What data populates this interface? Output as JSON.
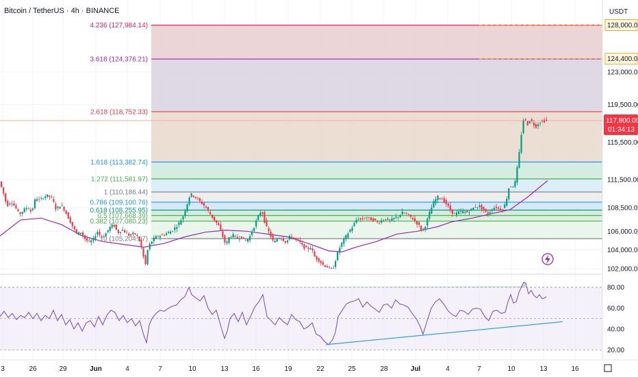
{
  "header": {
    "title": "Bitcoin / TetherUS · 4h · BINANCE"
  },
  "price_scale": {
    "currency": "USDT",
    "ticks": [
      "123,000.00",
      "119,500.00",
      "115,500.00",
      "111,500.00",
      "108,500.00",
      "106,000.00",
      "104,000.00",
      "102,000.00"
    ],
    "current_price": "117,800.00",
    "countdown": "01:34:13",
    "alert_labels": [
      "128,000.00",
      "124,400.00"
    ]
  },
  "rsi_scale": {
    "ticks": [
      "80.00",
      "60.00",
      "40.00",
      "20.00"
    ]
  },
  "time_axis": {
    "labels": [
      "3",
      "26",
      "29",
      "Jun",
      "4",
      "7",
      "10",
      "13",
      "16",
      "19",
      "22",
      "25",
      "28",
      "Jul",
      "4",
      "7",
      "10",
      "13",
      "16"
    ]
  },
  "colors": {
    "up": "#089981",
    "down": "#f23645",
    "ma": "#9c27b0",
    "rsi": "#7e57c2",
    "rsi_band": "#ede7f6",
    "trendline": "#2196f3",
    "alert": "#f9a825"
  },
  "chart_data": [
    {
      "type": "candlestick",
      "symbol": "BTCUSDT",
      "interval": "4h",
      "ylim": [
        102000,
        129500
      ],
      "current_price": 117800,
      "fib_levels": [
        {
          "ratio": "0",
          "price": 105204.17,
          "label": "0 (105,204.17)",
          "color": "#787b86"
        },
        {
          "ratio": "0.382",
          "price": 107080.23,
          "label": "0.382 (107,080.23)",
          "color": "#4caf50"
        },
        {
          "ratio": "0.5",
          "price": 107668.39,
          "label": "0.5 (107,668.39)",
          "color": "#4caf50"
        },
        {
          "ratio": "0.618",
          "price": 108255.95,
          "label": "0.618 (108,255.95)",
          "color": "#089981"
        },
        {
          "ratio": "0.786",
          "price": 109100.76,
          "label": "0.786 (109,100.76)",
          "color": "#2196f3"
        },
        {
          "ratio": "1",
          "price": 110186.44,
          "label": "1 (110,186.44)",
          "color": "#787b86"
        },
        {
          "ratio": "1.272",
          "price": 111581.97,
          "label": "1.272 (111,581.97)",
          "color": "#4caf50"
        },
        {
          "ratio": "1.618",
          "price": 113382.74,
          "label": "1.618 (113,382.74)",
          "color": "#2196f3"
        },
        {
          "ratio": "2.618",
          "price": 118752.33,
          "label": "2.618 (118,752.33)",
          "color": "#f23645"
        },
        {
          "ratio": "3.618",
          "price": 124376.21,
          "label": "3.618 (124,376.21)",
          "color": "#9c27b0"
        },
        {
          "ratio": "4.236",
          "price": 127984.14,
          "label": "4.236 (127,984.14)",
          "color": "#e91e63"
        }
      ],
      "price_path": [
        [
          0,
          111500
        ],
        [
          6,
          110300
        ],
        [
          12,
          108700
        ],
        [
          18,
          109200
        ],
        [
          24,
          108600
        ],
        [
          30,
          107800
        ],
        [
          36,
          108200
        ],
        [
          42,
          108600
        ],
        [
          48,
          108000
        ],
        [
          54,
          109600
        ],
        [
          60,
          109300
        ],
        [
          66,
          109700
        ],
        [
          72,
          109800
        ],
        [
          78,
          109500
        ],
        [
          84,
          108300
        ],
        [
          90,
          108800
        ],
        [
          96,
          108300
        ],
        [
          102,
          107400
        ],
        [
          108,
          106500
        ],
        [
          114,
          105700
        ],
        [
          120,
          105900
        ],
        [
          126,
          105200
        ],
        [
          132,
          104800
        ],
        [
          138,
          105100
        ],
        [
          144,
          106000
        ],
        [
          150,
          105300
        ],
        [
          156,
          105700
        ],
        [
          162,
          106400
        ],
        [
          168,
          106700
        ],
        [
          174,
          105800
        ],
        [
          180,
          106200
        ],
        [
          186,
          105800
        ],
        [
          192,
          105500
        ],
        [
          198,
          105800
        ],
        [
          204,
          105300
        ],
        [
          210,
          103900
        ],
        [
          214,
          102200
        ],
        [
          218,
          104200
        ],
        [
          222,
          104800
        ],
        [
          228,
          105300
        ],
        [
          234,
          105500
        ],
        [
          240,
          105600
        ],
        [
          246,
          105800
        ],
        [
          252,
          106000
        ],
        [
          258,
          106400
        ],
        [
          264,
          106900
        ],
        [
          270,
          107700
        ],
        [
          276,
          109100
        ],
        [
          280,
          110000
        ],
        [
          286,
          109700
        ],
        [
          292,
          109300
        ],
        [
          298,
          108900
        ],
        [
          304,
          108400
        ],
        [
          310,
          107700
        ],
        [
          316,
          107100
        ],
        [
          322,
          106500
        ],
        [
          328,
          105300
        ],
        [
          332,
          104500
        ],
        [
          336,
          105300
        ],
        [
          342,
          105600
        ],
        [
          348,
          105200
        ],
        [
          354,
          105500
        ],
        [
          360,
          104900
        ],
        [
          366,
          105300
        ],
        [
          372,
          106300
        ],
        [
          378,
          107400
        ],
        [
          384,
          108300
        ],
        [
          390,
          106600
        ],
        [
          396,
          105700
        ],
        [
          402,
          104700
        ],
        [
          408,
          105400
        ],
        [
          414,
          105200
        ],
        [
          420,
          104800
        ],
        [
          426,
          105500
        ],
        [
          432,
          105200
        ],
        [
          438,
          105000
        ],
        [
          444,
          104400
        ],
        [
          450,
          104100
        ],
        [
          456,
          104300
        ],
        [
          462,
          103200
        ],
        [
          468,
          102900
        ],
        [
          474,
          102400
        ],
        [
          480,
          102200
        ],
        [
          486,
          101900
        ],
        [
          490,
          102300
        ],
        [
          494,
          103500
        ],
        [
          500,
          104600
        ],
        [
          506,
          105300
        ],
        [
          512,
          106000
        ],
        [
          518,
          106600
        ],
        [
          524,
          107400
        ],
        [
          530,
          107200
        ],
        [
          536,
          107500
        ],
        [
          542,
          107300
        ],
        [
          548,
          107200
        ],
        [
          554,
          106900
        ],
        [
          560,
          107200
        ],
        [
          566,
          107300
        ],
        [
          572,
          107100
        ],
        [
          578,
          107400
        ],
        [
          584,
          107600
        ],
        [
          590,
          108000
        ],
        [
          596,
          107800
        ],
        [
          602,
          107500
        ],
        [
          608,
          107100
        ],
        [
          614,
          106600
        ],
        [
          618,
          106000
        ],
        [
          624,
          106700
        ],
        [
          630,
          108100
        ],
        [
          636,
          109200
        ],
        [
          642,
          109700
        ],
        [
          648,
          109400
        ],
        [
          654,
          108900
        ],
        [
          660,
          108200
        ],
        [
          666,
          107800
        ],
        [
          672,
          108000
        ],
        [
          678,
          108100
        ],
        [
          684,
          108000
        ],
        [
          690,
          108300
        ],
        [
          696,
          108600
        ],
        [
          702,
          108700
        ],
        [
          708,
          108300
        ],
        [
          714,
          107800
        ],
        [
          720,
          108300
        ],
        [
          726,
          108600
        ],
        [
          732,
          108300
        ],
        [
          738,
          108500
        ],
        [
          742,
          109500
        ],
        [
          746,
          110900
        ],
        [
          750,
          110700
        ],
        [
          754,
          111100
        ],
        [
          758,
          113000
        ],
        [
          762,
          115200
        ],
        [
          765,
          117500
        ],
        [
          768,
          118200
        ],
        [
          772,
          117300
        ],
        [
          776,
          117900
        ],
        [
          780,
          117600
        ],
        [
          784,
          117100
        ],
        [
          788,
          117500
        ],
        [
          792,
          117700
        ],
        [
          796,
          117800
        ],
        [
          800,
          117800
        ]
      ],
      "ma_path": [
        [
          0,
          105500
        ],
        [
          30,
          107200
        ],
        [
          60,
          107400
        ],
        [
          90,
          106700
        ],
        [
          120,
          105500
        ],
        [
          150,
          104900
        ],
        [
          180,
          104600
        ],
        [
          210,
          104300
        ],
        [
          240,
          104700
        ],
        [
          270,
          105400
        ],
        [
          300,
          105900
        ],
        [
          330,
          106100
        ],
        [
          360,
          106000
        ],
        [
          390,
          105700
        ],
        [
          420,
          105400
        ],
        [
          450,
          104700
        ],
        [
          480,
          103900
        ],
        [
          500,
          103800
        ],
        [
          520,
          104300
        ],
        [
          550,
          104900
        ],
        [
          580,
          105700
        ],
        [
          610,
          106000
        ],
        [
          640,
          106500
        ],
        [
          660,
          107000
        ],
        [
          690,
          107400
        ],
        [
          720,
          107900
        ],
        [
          745,
          108300
        ],
        [
          770,
          109600
        ],
        [
          800,
          111400
        ]
      ]
    },
    {
      "type": "line",
      "name": "RSI",
      "ylim": [
        15,
        88
      ],
      "levels": [
        70,
        50,
        30
      ],
      "values": [
        [
          0,
          52
        ],
        [
          6,
          57
        ],
        [
          12,
          51
        ],
        [
          18,
          55
        ],
        [
          24,
          49
        ],
        [
          30,
          53
        ],
        [
          36,
          51
        ],
        [
          42,
          56
        ],
        [
          48,
          50
        ],
        [
          54,
          55
        ],
        [
          60,
          48
        ],
        [
          66,
          53
        ],
        [
          72,
          50
        ],
        [
          78,
          58
        ],
        [
          84,
          48
        ],
        [
          90,
          54
        ],
        [
          96,
          44
        ],
        [
          102,
          49
        ],
        [
          108,
          40
        ],
        [
          114,
          46
        ],
        [
          120,
          38
        ],
        [
          126,
          46
        ],
        [
          132,
          48
        ],
        [
          138,
          42
        ],
        [
          144,
          52
        ],
        [
          150,
          44
        ],
        [
          156,
          53
        ],
        [
          162,
          58
        ],
        [
          168,
          56
        ],
        [
          174,
          48
        ],
        [
          180,
          53
        ],
        [
          186,
          46
        ],
        [
          192,
          50
        ],
        [
          198,
          43
        ],
        [
          204,
          48
        ],
        [
          210,
          34
        ],
        [
          214,
          27
        ],
        [
          218,
          44
        ],
        [
          222,
          50
        ],
        [
          228,
          55
        ],
        [
          234,
          58
        ],
        [
          240,
          57
        ],
        [
          246,
          60
        ],
        [
          252,
          62
        ],
        [
          258,
          63
        ],
        [
          264,
          68
        ],
        [
          270,
          71
        ],
        [
          276,
          80
        ],
        [
          280,
          73
        ],
        [
          286,
          70
        ],
        [
          292,
          67
        ],
        [
          298,
          72
        ],
        [
          304,
          60
        ],
        [
          310,
          54
        ],
        [
          316,
          58
        ],
        [
          322,
          44
        ],
        [
          328,
          31
        ],
        [
          332,
          38
        ],
        [
          336,
          50
        ],
        [
          342,
          55
        ],
        [
          348,
          47
        ],
        [
          354,
          56
        ],
        [
          360,
          44
        ],
        [
          366,
          52
        ],
        [
          372,
          61
        ],
        [
          378,
          66
        ],
        [
          384,
          73
        ],
        [
          390,
          52
        ],
        [
          396,
          48
        ],
        [
          402,
          44
        ],
        [
          408,
          51
        ],
        [
          414,
          47
        ],
        [
          420,
          44
        ],
        [
          426,
          54
        ],
        [
          432,
          49
        ],
        [
          438,
          47
        ],
        [
          444,
          40
        ],
        [
          450,
          42
        ],
        [
          456,
          46
        ],
        [
          462,
          35
        ],
        [
          468,
          33
        ],
        [
          474,
          28
        ],
        [
          480,
          25
        ],
        [
          486,
          30
        ],
        [
          490,
          37
        ],
        [
          494,
          52
        ],
        [
          500,
          58
        ],
        [
          506,
          64
        ],
        [
          512,
          66
        ],
        [
          518,
          67
        ],
        [
          524,
          69
        ],
        [
          530,
          61
        ],
        [
          536,
          66
        ],
        [
          542,
          62
        ],
        [
          548,
          59
        ],
        [
          554,
          56
        ],
        [
          560,
          63
        ],
        [
          566,
          64
        ],
        [
          572,
          60
        ],
        [
          578,
          68
        ],
        [
          584,
          64
        ],
        [
          590,
          63
        ],
        [
          596,
          61
        ],
        [
          602,
          55
        ],
        [
          608,
          50
        ],
        [
          614,
          42
        ],
        [
          618,
          35
        ],
        [
          624,
          48
        ],
        [
          630,
          60
        ],
        [
          636,
          66
        ],
        [
          642,
          69
        ],
        [
          648,
          64
        ],
        [
          654,
          58
        ],
        [
          660,
          54
        ],
        [
          666,
          52
        ],
        [
          672,
          58
        ],
        [
          678,
          57
        ],
        [
          684,
          54
        ],
        [
          690,
          59
        ],
        [
          696,
          60
        ],
        [
          702,
          59
        ],
        [
          708,
          52
        ],
        [
          714,
          48
        ],
        [
          720,
          57
        ],
        [
          726,
          58
        ],
        [
          732,
          55
        ],
        [
          738,
          56
        ],
        [
          742,
          66
        ],
        [
          746,
          73
        ],
        [
          750,
          65
        ],
        [
          754,
          66
        ],
        [
          758,
          75
        ],
        [
          762,
          81
        ],
        [
          765,
          85
        ],
        [
          768,
          84
        ],
        [
          772,
          74
        ],
        [
          776,
          77
        ],
        [
          780,
          72
        ],
        [
          784,
          70
        ],
        [
          788,
          73
        ],
        [
          792,
          69
        ],
        [
          796,
          70
        ],
        [
          798,
          71
        ]
      ],
      "trendline": [
        [
          476,
          25
        ],
        [
          822,
          47
        ]
      ]
    }
  ]
}
